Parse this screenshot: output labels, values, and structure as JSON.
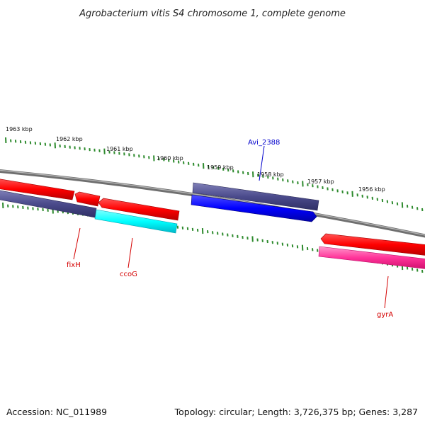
{
  "title": "Agrobacterium vitis S4 chromosome 1, complete genome",
  "footer": {
    "accession": "Accession: NC_011989",
    "summary": "Topology: circular; Length: 3,726,375 bp; Genes: 3,287"
  },
  "scale_labels": [
    "1963 kbp",
    "1962 kbp",
    "1961 kbp",
    "1960 kbp",
    "1959 kbp",
    "1958 kbp",
    "1957 kbp",
    "1956 kbp"
  ],
  "genes": [
    {
      "name": "fixH",
      "color": "#d40000"
    },
    {
      "name": "ccoG",
      "color": "#d40000"
    },
    {
      "name": "Avi_2388",
      "color": "#0000cc"
    },
    {
      "name": "gyrA",
      "color": "#d40000"
    }
  ],
  "colors": {
    "backbone": "#808080",
    "tick": "#2e8b2e",
    "forward_cds": "#ff0000",
    "reverse_gene": "#4b4b8c",
    "reverse_cds_blue": "#0000ff",
    "reverse_cds_cyan": "#00ffff",
    "pink_cds": "#ff3399"
  }
}
